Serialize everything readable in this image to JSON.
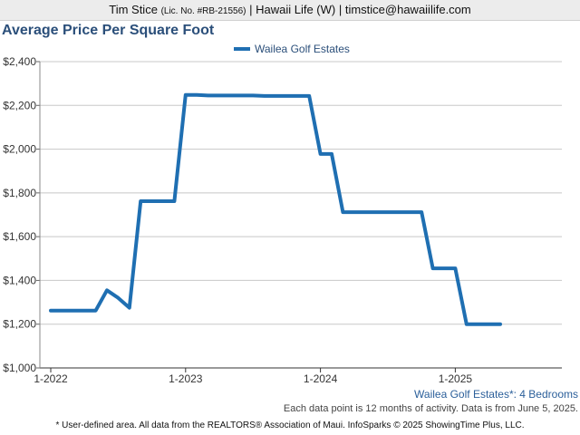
{
  "header": {
    "agent": "Tim Stice",
    "license": "(Lic. No. #RB-21556)",
    "rest": "| Hawaii Life (W) | timstice@hawaiilife.com"
  },
  "chart_data": {
    "type": "line",
    "title": "Average Price Per Square Foot",
    "xlabel": "",
    "ylabel": "",
    "ylim": [
      1000,
      2400
    ],
    "yticks": [
      "$1,000",
      "$1,200",
      "$1,400",
      "$1,600",
      "$1,800",
      "$2,000",
      "$2,200",
      "$2,400"
    ],
    "yticks_values": [
      1000,
      1200,
      1400,
      1600,
      1800,
      2000,
      2200,
      2400
    ],
    "xticks": [
      "1-2022",
      "1-2023",
      "1-2024",
      "1-2025"
    ],
    "grid": true,
    "legend_position": "top-center",
    "series": [
      {
        "name": "Wailea Golf Estates",
        "color": "#1f6fb2",
        "x": [
          "2022-01",
          "2022-02",
          "2022-03",
          "2022-04",
          "2022-05",
          "2022-06",
          "2022-07",
          "2022-08",
          "2022-09",
          "2022-10",
          "2022-11",
          "2022-12",
          "2023-01",
          "2023-02",
          "2023-03",
          "2023-04",
          "2023-05",
          "2023-06",
          "2023-07",
          "2023-08",
          "2023-09",
          "2023-10",
          "2023-11",
          "2023-12",
          "2024-01",
          "2024-02",
          "2024-03",
          "2024-04",
          "2024-05",
          "2024-06",
          "2024-07",
          "2024-08",
          "2024-09",
          "2024-10",
          "2024-11",
          "2024-12",
          "2025-01",
          "2025-02",
          "2025-03",
          "2025-04",
          "2025-05"
        ],
        "values": [
          1262,
          1262,
          1262,
          1262,
          1262,
          1355,
          1320,
          1275,
          1762,
          1762,
          1762,
          1762,
          2248,
          2248,
          2245,
          2245,
          2245,
          2245,
          2245,
          2243,
          2243,
          2243,
          2243,
          2243,
          1978,
          1978,
          1712,
          1712,
          1712,
          1712,
          1712,
          1712,
          1712,
          1712,
          1455,
          1455,
          1455,
          1200,
          1200,
          1200,
          1200
        ]
      }
    ]
  },
  "subtitle": "Wailea Golf Estates*: 4 Bedrooms",
  "note": "Each data point is 12 months of activity. Data is from June 5, 2025.",
  "footer": "* User-defined area. All data from the REALTORS® Association of Maui. InfoSparks © 2025 ShowingTime Plus, LLC."
}
